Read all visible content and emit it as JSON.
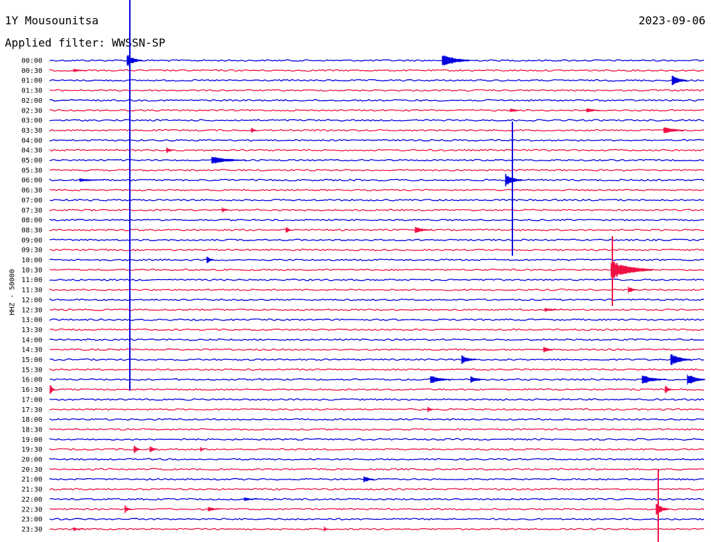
{
  "header": {
    "station": "1Y Mousounitsa",
    "filter": "Applied filter: WWSSN-SP",
    "date": "2023-09-06"
  },
  "chart_data": {
    "type": "helicorder",
    "ylabel": "HHZ - 50000",
    "colors": {
      "blue": "#0000dd",
      "red": "#ee1144"
    },
    "rows": [
      "00:00",
      "00:30",
      "01:00",
      "01:30",
      "02:00",
      "02:30",
      "03:00",
      "03:30",
      "04:00",
      "04:30",
      "05:00",
      "05:30",
      "06:00",
      "06:30",
      "07:00",
      "07:30",
      "08:00",
      "08:30",
      "09:00",
      "09:30",
      "10:00",
      "10:30",
      "11:00",
      "11:30",
      "12:00",
      "12:30",
      "13:00",
      "13:30",
      "14:00",
      "14:30",
      "15:00",
      "15:30",
      "16:00",
      "16:30",
      "17:00",
      "17:30",
      "18:00",
      "18:30",
      "19:00",
      "19:30",
      "20:00",
      "20:30",
      "21:00",
      "21:30",
      "22:00",
      "22:30",
      "23:00",
      "23:30"
    ]
  }
}
